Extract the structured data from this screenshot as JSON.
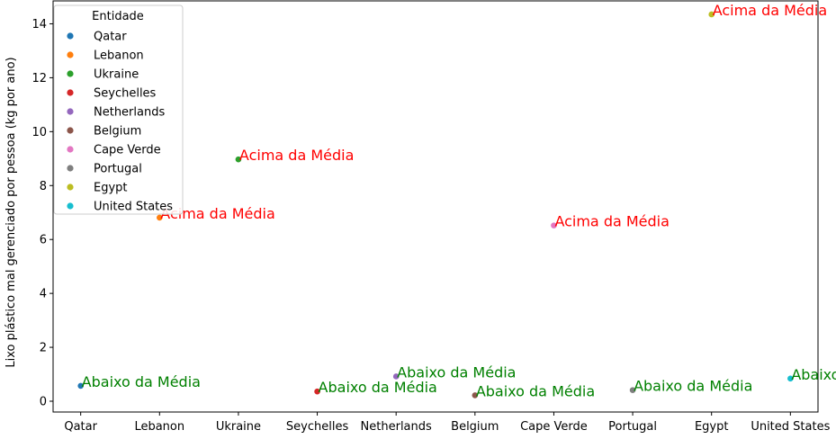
{
  "chart_data": {
    "type": "scatter",
    "ylabel": "Lixo plástico mal gerenciado por pessoa (kg por ano)",
    "xlabel": "",
    "ylim": [
      -0.4,
      14.85
    ],
    "yticks": [
      0,
      2,
      4,
      6,
      8,
      10,
      12,
      14
    ],
    "categories": [
      "Qatar",
      "Lebanon",
      "Ukraine",
      "Seychelles",
      "Netherlands",
      "Belgium",
      "Cape Verde",
      "Portugal",
      "Egypt",
      "United States"
    ],
    "values": [
      0.57,
      6.81,
      8.97,
      0.36,
      0.92,
      0.22,
      6.52,
      0.41,
      14.35,
      0.84
    ],
    "point_colors": [
      "#1f77b4",
      "#ff7f0e",
      "#2ca02c",
      "#d62728",
      "#9467bd",
      "#8c564b",
      "#e377c2",
      "#7f7f7f",
      "#bcbd22",
      "#17becf"
    ],
    "annotations": [
      "Abaixo da Média",
      "Acima da Média",
      "Acima da Média",
      "Abaixo da Média",
      "Abaixo da Média",
      "Abaixo da Média",
      "Acima da Média",
      "Abaixo da Média",
      "Acima da Média",
      "Abaixo da Média"
    ],
    "annotation_colors": {
      "Acima da Média": "#ff0000",
      "Abaixo da Média": "#008000"
    },
    "legend": {
      "title": "Entidade",
      "placement": "upper-left",
      "entries": [
        "Qatar",
        "Lebanon",
        "Ukraine",
        "Seychelles",
        "Netherlands",
        "Belgium",
        "Cape Verde",
        "Portugal",
        "Egypt",
        "United States"
      ]
    },
    "grid": false
  }
}
